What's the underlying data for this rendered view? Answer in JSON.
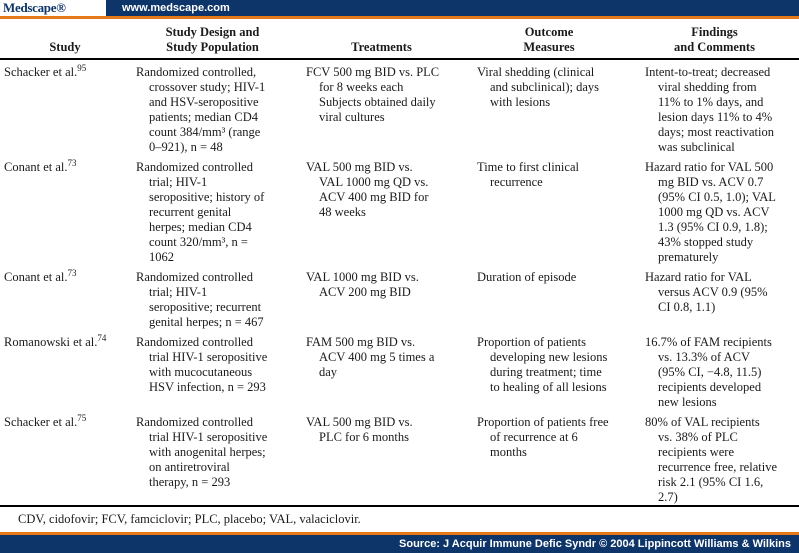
{
  "colors": {
    "navy": "#0d3569",
    "orange": "#e8791a"
  },
  "brand": {
    "logo": "Medscape®",
    "url": "www.medscape.com"
  },
  "table": {
    "col_headers": [
      "Study",
      "Study Design and\nStudy Population",
      "Treatments",
      "Outcome\nMeasures",
      "Findings\nand Comments"
    ],
    "rows": [
      {
        "study": "Schacker et al.",
        "ref": "95",
        "design": "Randomized controlled,\ncrossover study; HIV-1\nand HSV-seropositive\npatients; median CD4\ncount 384/mm³ (range\n0–921), n = 48",
        "treatments": "FCV 500 mg BID vs. PLC\nfor 8 weeks each\nSubjects obtained daily\nviral cultures",
        "outcome": "Viral shedding (clinical\nand subclinical); days\nwith lesions",
        "findings": "Intent-to-treat; decreased\nviral shedding from\n11% to 1% days, and\nlesion days 11% to 4%\ndays; most reactivation\nwas subclinical"
      },
      {
        "study": "Conant et al.",
        "ref": "73",
        "design": "Randomized controlled\ntrial; HIV-1\nseropositive; history of\nrecurrent genital\nherpes; median CD4\ncount 320/mm³, n =\n1062",
        "treatments": "VAL 500 mg BID vs.\nVAL 1000 mg QD vs.\nACV 400 mg BID for\n48 weeks",
        "outcome": "Time to first clinical\nrecurrence",
        "findings": "Hazard ratio for VAL 500\nmg BID vs. ACV 0.7\n(95% CI 0.5, 1.0); VAL\n1000 mg QD vs. ACV\n1.3 (95% CI 0.9, 1.8);\n43% stopped study\nprematurely"
      },
      {
        "study": "Conant et al.",
        "ref": "73",
        "design": "Randomized controlled\ntrial; HIV-1\nseropositive; recurrent\ngenital herpes; n = 467",
        "treatments": "VAL 1000 mg BID vs.\nACV 200 mg BID",
        "outcome": "Duration of episode",
        "findings": "Hazard ratio for VAL\nversus ACV 0.9 (95%\nCI 0.8, 1.1)"
      },
      {
        "study": "Romanowski et al.",
        "ref": "74",
        "design": "Randomized controlled\ntrial HIV-1 seropositive\nwith mucocutaneous\nHSV infection, n = 293",
        "treatments": "FAM 500 mg BID vs.\nACV 400 mg 5 times a\nday",
        "outcome": "Proportion of patients\ndeveloping new lesions\nduring treatment; time\nto healing of all lesions",
        "findings": "16.7% of FAM recipients\nvs. 13.3% of ACV\n(95% CI, −4.8, 11.5)\nrecipients developed\nnew lesions"
      },
      {
        "study": "Schacker et al.",
        "ref": "75",
        "design": "Randomized controlled\ntrial HIV-1 seropositive\nwith anogenital herpes;\non antiretroviral\ntherapy, n = 293",
        "treatments": "VAL 500 mg BID vs.\nPLC for 6 months",
        "outcome": "Proportion of patients free\nof recurrence at 6\nmonths",
        "findings": "80% of VAL recipients\nvs. 38% of PLC\nrecipients were\nrecurrence free, relative\nrisk 2.1 (95% CI 1.6,\n2.7)"
      }
    ],
    "footnote": "CDV, cidofovir; FCV, famciclovir; PLC, placebo; VAL, valaciclovir."
  },
  "source_bar": {
    "text": "Source: J Acquir Immune Defic Syndr © 2004 Lippincott Williams & Wilkins"
  }
}
